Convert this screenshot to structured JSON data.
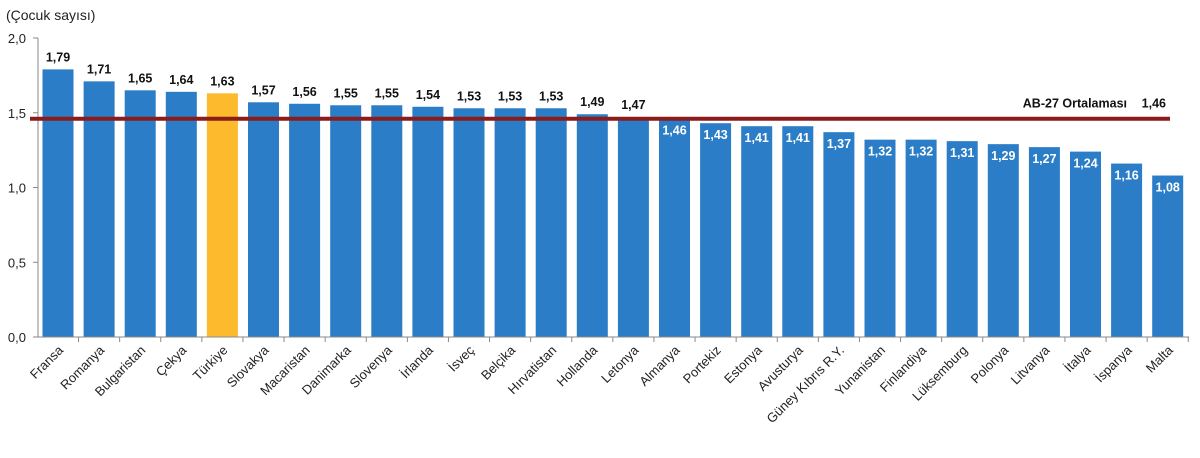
{
  "chart_data": {
    "type": "bar",
    "ylabel": "(Çocuk sayısı)",
    "ylim": [
      0,
      2.0
    ],
    "yticks": [
      "0,0",
      "0,5",
      "1,0",
      "1,5",
      "2,0"
    ],
    "ytick_values": [
      0,
      0.5,
      1.0,
      1.5,
      2.0
    ],
    "grid": false,
    "categories": [
      "Fransa",
      "Romanya",
      "Bulgaristan",
      "Çekya",
      "Türkiye",
      "Slovakya",
      "Macaristan",
      "Danimarka",
      "Slovenya",
      "İrlanda",
      "İsveç",
      "Belçika",
      "Hırvatistan",
      "Hollanda",
      "Letonya",
      "Almanya",
      "Portekiz",
      "Estonya",
      "Avusturya",
      "Güney Kıbrıs R.Y.",
      "Yunanistan",
      "Finlandiya",
      "Lüksemburg",
      "Polonya",
      "Litvanya",
      "İtalya",
      "İspanya",
      "Malta"
    ],
    "values": [
      1.79,
      1.71,
      1.65,
      1.64,
      1.63,
      1.57,
      1.56,
      1.55,
      1.55,
      1.54,
      1.53,
      1.53,
      1.53,
      1.49,
      1.47,
      1.46,
      1.43,
      1.41,
      1.41,
      1.37,
      1.32,
      1.32,
      1.31,
      1.29,
      1.27,
      1.24,
      1.16,
      1.08
    ],
    "value_labels": [
      "1,79",
      "1,71",
      "1,65",
      "1,64",
      "1,63",
      "1,57",
      "1,56",
      "1,55",
      "1,55",
      "1,54",
      "1,53",
      "1,53",
      "1,53",
      "1,49",
      "1,47",
      "1,46",
      "1,43",
      "1,41",
      "1,41",
      "1,37",
      "1,32",
      "1,32",
      "1,31",
      "1,29",
      "1,27",
      "1,24",
      "1,16",
      "1,08"
    ],
    "highlight": "Türkiye",
    "reference_line": {
      "label": "AB-27 Ortalaması",
      "value": 1.46,
      "value_label": "1,46"
    },
    "colors": {
      "bar": "#2A7DC6",
      "highlight": "#FDBA2C",
      "reference_line": "#8B1C1C",
      "axis": "#888888"
    }
  }
}
